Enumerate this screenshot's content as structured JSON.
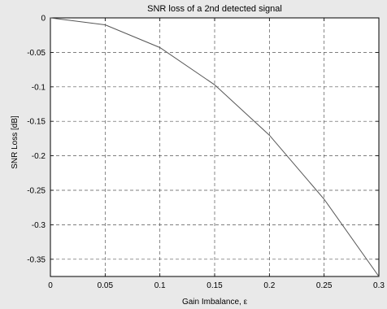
{
  "chart_data": {
    "type": "line",
    "title": "SNR loss of a 2nd detected signal",
    "xlabel": "Gain Imbalance, ε",
    "ylabel": "SNR Loss [dB]",
    "xlim": [
      0,
      0.3
    ],
    "ylim": [
      -0.375,
      0
    ],
    "grid": true,
    "x_ticks": [
      "0",
      "0.05",
      "0.1",
      "0.15",
      "0.2",
      "0.25",
      "0.3"
    ],
    "y_ticks": [
      "0",
      "-0.05",
      "-0.1",
      "-0.15",
      "-0.2",
      "-0.25",
      "-0.3",
      "-0.35"
    ],
    "series": [
      {
        "color": "#555555",
        "x": [
          0,
          0.05,
          0.1,
          0.15,
          0.2,
          0.25,
          0.3
        ],
        "y": [
          0,
          -0.01,
          -0.043,
          -0.097,
          -0.17,
          -0.263,
          -0.375
        ]
      }
    ]
  }
}
